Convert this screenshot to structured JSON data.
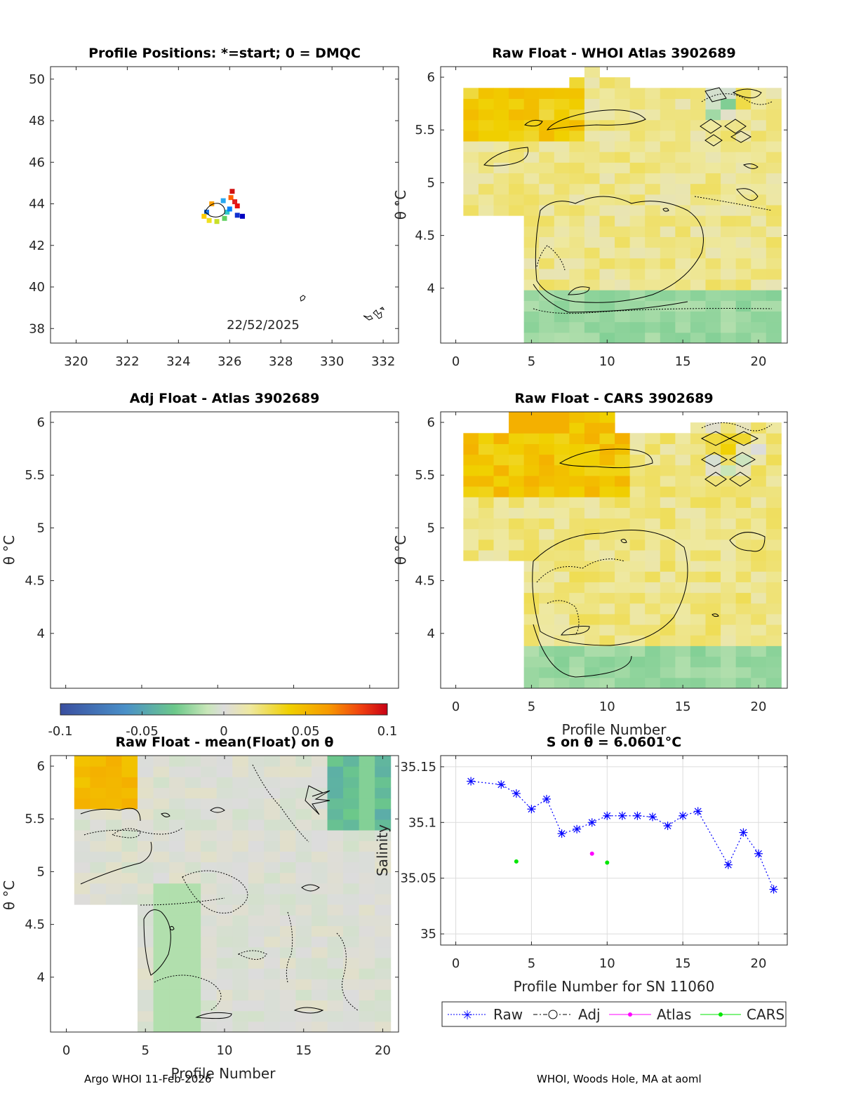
{
  "colors": {
    "raw": "#0000ff",
    "adj": "#000000",
    "atlas": "#ff00ff",
    "cars": "#00e600"
  },
  "footer": {
    "left": "Argo WHOI 11-Feb-2026",
    "right": "WHOI, Woods Hole, MA at aoml"
  },
  "colorbar": {
    "ticks": [
      "-0.1",
      "-0.05",
      "0",
      "0.05",
      "0.1"
    ],
    "range": [
      -0.1,
      0.1
    ]
  },
  "chart_data": [
    {
      "id": "positions",
      "type": "scatter",
      "title": "Profile Positions: *=start; 0 = DMQC",
      "xlim": [
        319,
        332.6
      ],
      "ylim": [
        37.3,
        50.6
      ],
      "xticks": [
        "320",
        "322",
        "324",
        "326",
        "328",
        "330",
        "332"
      ],
      "yticks": [
        "38",
        "40",
        "42",
        "44",
        "46",
        "48",
        "50"
      ],
      "date_label": "22/52/2025",
      "points": [
        {
          "lon": 325.1,
          "lat": 43.6,
          "c": "#1e6fe0"
        },
        {
          "lon": 325.3,
          "lat": 44.0,
          "c": "#ffa000"
        },
        {
          "lon": 325.0,
          "lat": 43.4,
          "c": "#ffcc00"
        },
        {
          "lon": 325.2,
          "lat": 43.2,
          "c": "#f0e020"
        },
        {
          "lon": 325.5,
          "lat": 43.15,
          "c": "#c8e028"
        },
        {
          "lon": 325.8,
          "lat": 43.3,
          "c": "#60d060"
        },
        {
          "lon": 325.9,
          "lat": 43.6,
          "c": "#30c8c8"
        },
        {
          "lon": 325.75,
          "lat": 44.15,
          "c": "#28a8f0"
        },
        {
          "lon": 326.05,
          "lat": 44.3,
          "c": "#ff6000"
        },
        {
          "lon": 326.2,
          "lat": 44.1,
          "c": "#e02020"
        },
        {
          "lon": 326.1,
          "lat": 44.6,
          "c": "#d01010"
        },
        {
          "lon": 326.3,
          "lat": 43.9,
          "c": "#e81010"
        },
        {
          "lon": 326.0,
          "lat": 43.75,
          "c": "#0080ff"
        },
        {
          "lon": 326.3,
          "lat": 43.45,
          "c": "#1030d0"
        },
        {
          "lon": 326.5,
          "lat": 43.4,
          "c": "#0000c0"
        }
      ]
    },
    {
      "id": "whoi",
      "type": "heatmap",
      "title": "Raw Float - WHOI Atlas  3902689",
      "xlim": [
        -1,
        21.9
      ],
      "ylim": [
        3.48,
        6.1
      ],
      "xticks": [
        "0",
        "5",
        "10",
        "15",
        "20"
      ],
      "yticks": [
        "4",
        "4.5",
        "5",
        "5.5",
        "6"
      ],
      "ylabel": "θ °C"
    },
    {
      "id": "adj",
      "type": "heatmap",
      "title": "Adj Float - Atlas  3902689",
      "xlim": [
        -1,
        21.9
      ],
      "ylim": [
        3.48,
        6.1
      ],
      "yticks": [
        "4",
        "4.5",
        "5",
        "5.5",
        "6"
      ],
      "ylabel": "θ °C"
    },
    {
      "id": "cars",
      "type": "heatmap",
      "title": "Raw Float - CARS  3902689",
      "xlim": [
        -1,
        21.9
      ],
      "ylim": [
        3.48,
        6.1
      ],
      "xticks": [
        "0",
        "5",
        "10",
        "15",
        "20"
      ],
      "yticks": [
        "4",
        "4.5",
        "5",
        "5.5",
        "6"
      ],
      "xlabel": "Profile Number",
      "ylabel": "θ °C"
    },
    {
      "id": "mean",
      "type": "heatmap",
      "title": "Raw Float - mean(Float) on θ",
      "xlim": [
        -1,
        21
      ],
      "ylim": [
        3.48,
        6.1
      ],
      "xticks": [
        "0",
        "5",
        "10",
        "15",
        "20"
      ],
      "yticks": [
        "4",
        "4.5",
        "5",
        "5.5",
        "6"
      ],
      "xlabel": "Profile Number",
      "ylabel": "θ °C"
    },
    {
      "id": "salinity",
      "type": "line",
      "title": "S on θ = 6.0601°C",
      "xlim": [
        -1,
        21.9
      ],
      "ylim": [
        34.99,
        35.16
      ],
      "xticks": [
        "0",
        "5",
        "10",
        "15",
        "20"
      ],
      "yticks": [
        "35",
        "35.05",
        "35.1",
        "35.15"
      ],
      "xlabel": "Profile Number for SN 11060",
      "ylabel": "Salinity",
      "series": [
        {
          "name": "Raw",
          "x": [
            1,
            3,
            4,
            5,
            6,
            7,
            8,
            9,
            10,
            11,
            12,
            13,
            14,
            15,
            16,
            18,
            19,
            20,
            21
          ],
          "y": [
            35.137,
            35.134,
            35.126,
            35.112,
            35.121,
            35.09,
            35.094,
            35.1,
            35.106,
            35.106,
            35.106,
            35.105,
            35.097,
            35.106,
            35.11,
            35.062,
            35.091,
            35.072,
            35.04
          ]
        },
        {
          "name": "Adj",
          "x": [],
          "y": []
        },
        {
          "name": "Atlas",
          "x": [
            9
          ],
          "y": [
            35.072
          ]
        },
        {
          "name": "CARS",
          "x": [
            4,
            10
          ],
          "y": [
            35.065,
            35.064
          ]
        }
      ],
      "legend": [
        "Raw",
        "Adj",
        "Atlas",
        "CARS"
      ]
    }
  ]
}
